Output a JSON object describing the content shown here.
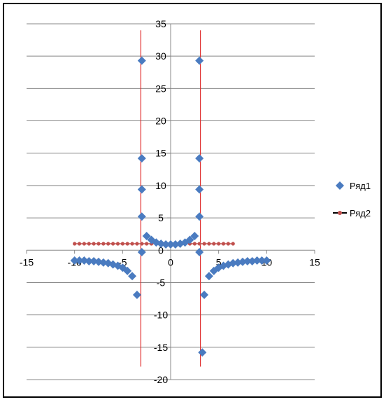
{
  "chart_data": {
    "type": "scatter",
    "title": "",
    "xlabel": "",
    "ylabel": "",
    "xlim": [
      -15,
      15
    ],
    "ylim": [
      -20,
      35
    ],
    "x_ticks": [
      -15,
      -10,
      -5,
      0,
      5,
      10,
      15
    ],
    "y_ticks": [
      -20,
      -15,
      -10,
      -5,
      0,
      5,
      10,
      15,
      20,
      25,
      30,
      35
    ],
    "x_tick_labels": [
      "-15",
      "-10",
      "-5",
      "0",
      "5",
      "10",
      "15"
    ],
    "y_tick_labels": [
      "-20",
      "-15",
      "-10",
      "-5",
      "0",
      "5",
      "10",
      "15",
      "20",
      "25",
      "30",
      "35"
    ],
    "grid": "horizontal",
    "legend_position": "right",
    "vertical_lines": [
      {
        "x": -3.1,
        "y_from": -18,
        "y_to": 34,
        "color": "#e03030"
      },
      {
        "x": 3.1,
        "y_from": -18,
        "y_to": 34,
        "color": "#e03030"
      }
    ],
    "series": [
      {
        "name": "Ряд1",
        "marker": "diamond",
        "color": "#4a7bc0",
        "points": [
          [
            -10,
            -1.6
          ],
          [
            -9.5,
            -1.6
          ],
          [
            -9,
            -1.6
          ],
          [
            -8.5,
            -1.7
          ],
          [
            -8,
            -1.7
          ],
          [
            -7.5,
            -1.8
          ],
          [
            -7,
            -1.9
          ],
          [
            -6.5,
            -2.0
          ],
          [
            -6,
            -2.2
          ],
          [
            -5.5,
            -2.4
          ],
          [
            -5,
            -2.7
          ],
          [
            -4.5,
            -3.2
          ],
          [
            -4,
            -4.0
          ],
          [
            -3.5,
            -6.9
          ],
          [
            -3,
            -0.3
          ],
          [
            -3,
            5.2
          ],
          [
            -3,
            9.4
          ],
          [
            -3,
            14.2
          ],
          [
            -3,
            29.3
          ],
          [
            -2.5,
            2.2
          ],
          [
            -2,
            1.6
          ],
          [
            -1.5,
            1.2
          ],
          [
            -1,
            1.0
          ],
          [
            -0.5,
            0.9
          ],
          [
            0,
            0.9
          ],
          [
            0.5,
            0.9
          ],
          [
            1,
            1.0
          ],
          [
            1.5,
            1.2
          ],
          [
            2,
            1.6
          ],
          [
            2.5,
            2.2
          ],
          [
            3,
            29.3
          ],
          [
            3,
            14.2
          ],
          [
            3,
            9.4
          ],
          [
            3,
            5.2
          ],
          [
            3,
            -0.3
          ],
          [
            3.5,
            -6.9
          ],
          [
            4,
            -4.0
          ],
          [
            4.5,
            -3.2
          ],
          [
            5,
            -2.7
          ],
          [
            5.5,
            -2.4
          ],
          [
            6,
            -2.2
          ],
          [
            6.5,
            -2.0
          ],
          [
            7,
            -1.9
          ],
          [
            7.5,
            -1.8
          ],
          [
            8,
            -1.7
          ],
          [
            8.5,
            -1.7
          ],
          [
            9,
            -1.6
          ],
          [
            9.5,
            -1.6
          ],
          [
            10,
            -1.6
          ],
          [
            3.3,
            -15.8
          ]
        ]
      },
      {
        "name": "Ряд2",
        "marker": "circle",
        "color": "#c0504d",
        "line_color": "#000000",
        "x_from": -10,
        "x_to": 6.5,
        "step": 0.5,
        "y": 1
      }
    ]
  }
}
